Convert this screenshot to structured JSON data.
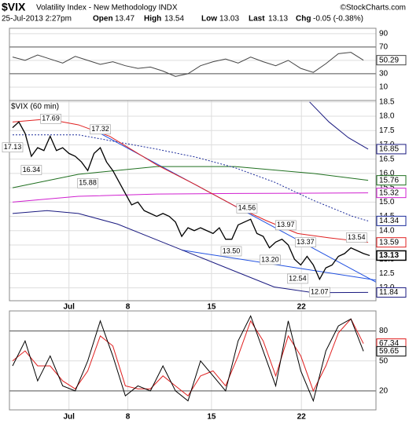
{
  "header": {
    "symbol": "$VIX",
    "name": "Volatility Index - New Methodology INDX",
    "source": "©StockCharts.com",
    "date": "25-Jul-2013 2:27pm",
    "open_label": "Open",
    "open": "13.47",
    "high_label": "High",
    "high": "13.54",
    "low_label": "Low",
    "low": "13.03",
    "last_label": "Last",
    "last": "13.13",
    "chg_label": "Chg",
    "chg": "-0.05 (-0.38%)"
  },
  "chart_data": [
    {
      "type": "line",
      "xlim": [
        -0.5,
        58
      ],
      "ylim": [
        -10,
        98
      ],
      "yticks": [
        90,
        70,
        50,
        30,
        10
      ],
      "levels": [
        70,
        30
      ],
      "grid": true,
      "x": [
        0,
        2,
        4,
        6,
        8,
        10,
        12,
        14,
        16,
        18,
        20,
        22,
        24,
        26,
        28,
        30,
        32,
        34,
        36,
        38,
        40,
        42,
        44,
        46,
        48,
        50,
        52,
        54,
        56
      ],
      "series": [
        {
          "color": "#444444",
          "tag": true,
          "values": [
            55,
            50,
            58,
            52,
            46,
            56,
            50,
            44,
            48,
            42,
            38,
            40,
            34,
            26,
            30,
            42,
            48,
            52,
            46,
            55,
            48,
            42,
            50,
            38,
            32,
            45,
            60,
            62,
            50.29
          ]
        }
      ]
    },
    {
      "type": "line",
      "legend": "$VIX (60 min)",
      "xlim": [
        -0.5,
        58
      ],
      "ylim": [
        11.55,
        18.55
      ],
      "grid": true,
      "xticks": [
        {
          "value": 9,
          "label": "Jul"
        },
        {
          "value": 18.4,
          "label": "8"
        },
        {
          "value": 31.75,
          "label": "15"
        },
        {
          "value": 46.1,
          "label": "22"
        }
      ],
      "yticks": [
        18.5,
        {
          "value": 18,
          "label": "18.0"
        },
        17.5,
        {
          "value": 17,
          "label": "17.0"
        },
        16.5,
        {
          "value": 16,
          "label": "16.0"
        },
        15.5,
        {
          "value": 15,
          "label": "15.0"
        },
        14.5,
        {
          "value": 14,
          "label": "14.0"
        },
        13.5,
        {
          "value": 13,
          "label": "13.0"
        },
        12.5,
        {
          "value": 12,
          "label": "12.0"
        }
      ],
      "x": [
        0,
        1,
        2,
        3,
        4,
        5,
        6,
        7,
        8,
        9,
        10,
        11,
        12,
        13,
        14,
        15,
        16,
        17,
        18,
        19,
        20,
        21,
        22,
        23,
        24,
        25,
        26,
        27,
        28,
        29,
        30,
        31,
        32,
        33,
        34,
        35,
        36,
        37,
        38,
        39,
        40,
        41,
        42,
        43,
        44,
        45,
        46,
        47,
        48,
        49,
        50,
        51,
        52,
        53,
        54,
        55,
        56,
        57
      ],
      "series": [
        {
          "color": "#2050e0",
          "x": [
            14,
            58
          ],
          "values": [
            17.4,
            12.2
          ]
        },
        {
          "color": "#2050e0",
          "x": [
            27,
            58
          ],
          "values": [
            13.32,
            12.27
          ]
        },
        {
          "color": "#1a1a80",
          "tag": true,
          "x": [
            47.4,
            50.5,
            53.6,
            56.75
          ],
          "values": [
            18.5,
            17.8,
            17.25,
            16.85
          ]
        },
        {
          "color": "#1a1a80",
          "tag": true,
          "x": [
            0,
            5.5,
            10.5,
            16.75,
            23,
            29.25,
            35.5,
            41.75,
            48,
            56.75
          ],
          "values": [
            14.6,
            14.7,
            14.6,
            14.23,
            13.68,
            13.13,
            12.58,
            12.03,
            11.83,
            11.84
          ]
        },
        {
          "color": "#207020",
          "tag": true,
          "x": [
            0,
            10.5,
            23,
            35.5,
            48,
            56.75
          ],
          "values": [
            15.5,
            15.97,
            16.24,
            16.24,
            16.0,
            15.76
          ]
        },
        {
          "color": "#d020d0",
          "tag": true,
          "x": [
            0,
            10.5,
            23,
            35.5,
            48,
            56.75
          ],
          "values": [
            15.0,
            15.2,
            15.28,
            15.3,
            15.31,
            15.32
          ]
        },
        {
          "color": "#1a2a9a",
          "dashed": true,
          "tag": true,
          "x": [
            0,
            10.5,
            16.75,
            23,
            29.25,
            35.5,
            41.75,
            48,
            54.25,
            56.75
          ],
          "values": [
            17.35,
            17.35,
            17.1,
            16.85,
            16.57,
            16.2,
            15.7,
            15.06,
            14.5,
            14.34
          ]
        },
        {
          "color": "#e02020",
          "tag": true,
          "x": [
            0,
            5.5,
            10.5,
            15.5,
            23,
            29.25,
            35.5,
            40.5,
            45.5,
            50.5,
            56.75
          ],
          "values": [
            17.8,
            17.9,
            17.7,
            17.3,
            16.3,
            15.6,
            14.86,
            14.35,
            13.9,
            13.75,
            13.59
          ]
        },
        {
          "color": "#000000",
          "tag": true,
          "bold": true,
          "values": [
            17.6,
            17.8,
            17.4,
            16.6,
            16.9,
            16.8,
            17.3,
            16.8,
            16.9,
            16.7,
            16.6,
            16.4,
            16.1,
            16.7,
            16.9,
            16.4,
            16.1,
            15.7,
            15.3,
            14.9,
            15.0,
            14.7,
            14.6,
            14.5,
            14.6,
            14.5,
            14.3,
            13.8,
            14.1,
            14.0,
            14.1,
            14.0,
            13.9,
            14.1,
            13.7,
            13.7,
            14.2,
            14.3,
            14.4,
            13.9,
            13.8,
            13.4,
            13.6,
            13.7,
            13.5,
            13.0,
            12.8,
            13.1,
            12.8,
            12.3,
            12.7,
            12.8,
            13.1,
            13.2,
            13.4,
            13.3,
            13.2,
            13.13
          ]
        }
      ],
      "annotations": [
        {
          "x": 0,
          "value": 17.13,
          "label": "17.13"
        },
        {
          "x": 6.1,
          "value": 17.69,
          "label": "17.69"
        },
        {
          "x": 3,
          "value": 16.34,
          "label": "16.34"
        },
        {
          "x": 14,
          "value": 17.32,
          "label": "17.32"
        },
        {
          "x": 12,
          "value": 15.88,
          "label": "15.88"
        },
        {
          "x": 37.4,
          "value": 14.56,
          "label": "14.56"
        },
        {
          "x": 34.9,
          "value": 13.5,
          "label": "13.50"
        },
        {
          "x": 43.6,
          "value": 13.97,
          "label": "13.97"
        },
        {
          "x": 41.1,
          "value": 13.2,
          "label": "13.20"
        },
        {
          "x": 46.75,
          "value": 13.37,
          "label": "13.37"
        },
        {
          "x": 45.5,
          "value": 12.54,
          "label": "12.54"
        },
        {
          "x": 49,
          "value": 12.07,
          "label": "12.07"
        },
        {
          "x": 54.9,
          "value": 13.54,
          "label": "13.54"
        }
      ]
    },
    {
      "type": "line",
      "xlim": [
        -0.5,
        58
      ],
      "ylim": [
        1,
        100
      ],
      "yticks": [
        80,
        50,
        20
      ],
      "levels": [
        80,
        20
      ],
      "grid": true,
      "xticks": [
        {
          "value": 9,
          "label": "Jul"
        },
        {
          "value": 18.4,
          "label": "8"
        },
        {
          "value": 31.75,
          "label": "15"
        },
        {
          "value": 46.1,
          "label": "22"
        }
      ],
      "x": [
        0,
        2,
        4,
        6,
        8,
        10,
        12,
        14,
        16,
        18,
        20,
        22,
        24,
        26,
        28,
        30,
        32,
        34,
        36,
        38,
        40,
        42,
        44,
        46,
        48,
        50,
        52,
        54,
        56
      ],
      "series": [
        {
          "color": "#e02020",
          "tag": true,
          "values": [
            50,
            60,
            45,
            45,
            30,
            22,
            40,
            75,
            65,
            25,
            22,
            22,
            35,
            25,
            15,
            35,
            40,
            25,
            55,
            90,
            70,
            35,
            75,
            55,
            20,
            45,
            78,
            92,
            67.34
          ]
        },
        {
          "color": "#000000",
          "tag": true,
          "values": [
            45,
            70,
            30,
            55,
            25,
            20,
            50,
            90,
            55,
            15,
            25,
            20,
            45,
            20,
            10,
            50,
            35,
            20,
            70,
            95,
            60,
            25,
            90,
            40,
            10,
            60,
            85,
            92,
            59.65
          ]
        }
      ]
    }
  ]
}
